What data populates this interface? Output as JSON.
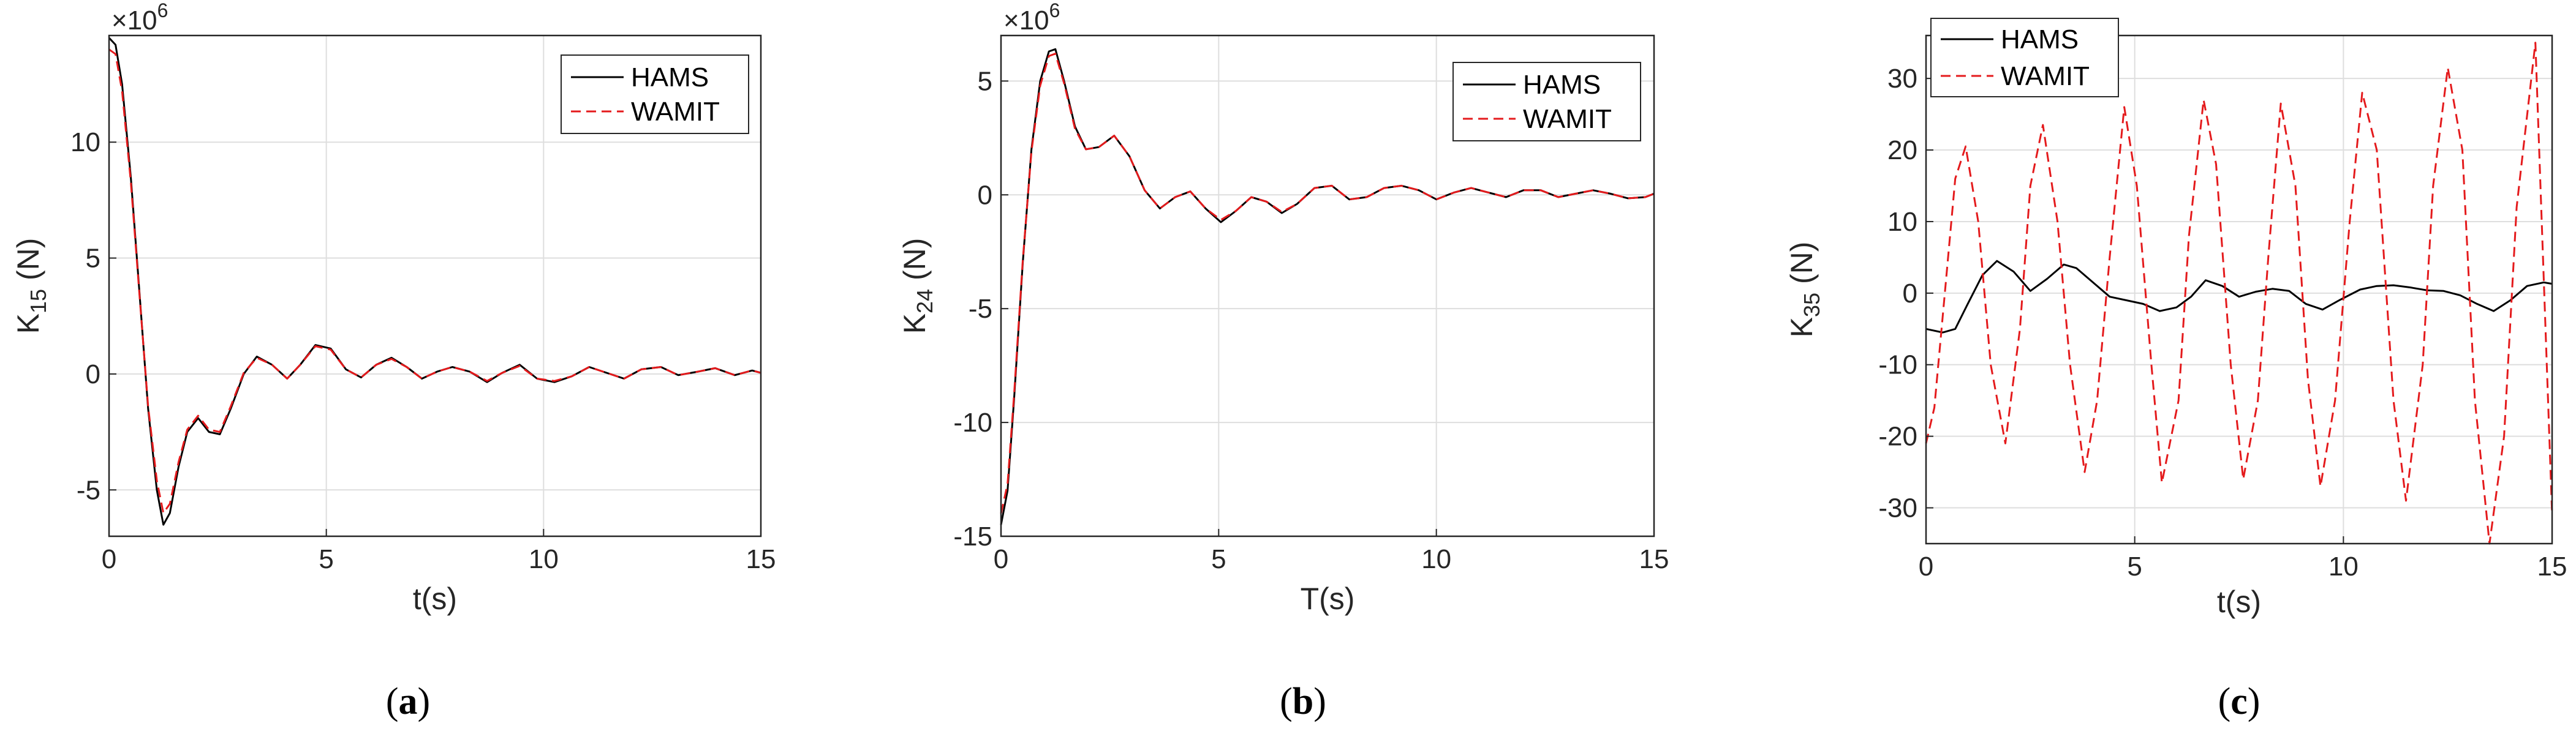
{
  "colors": {
    "hams": "#000000",
    "wamit": "#e41a1c",
    "grid": "#dedede",
    "axis": "#262626"
  },
  "chart_data": [
    {
      "type": "line",
      "caption_letter": "a",
      "xlabel": "t(s)",
      "ylabel_main": "K",
      "ylabel_sub": "15",
      "ylabel_unit": " (N)",
      "exponent_label": "×10",
      "exponent_power": "6",
      "xlim": [
        0,
        15
      ],
      "ylim": [
        -7,
        14.6
      ],
      "xticks": [
        0,
        5,
        10,
        15
      ],
      "yticks": [
        -5,
        0,
        5,
        10
      ],
      "grid": true,
      "legend_position": "top-right",
      "series": [
        {
          "name": "HAMS",
          "style": "solid",
          "x": [
            0,
            0.15,
            0.3,
            0.5,
            0.7,
            0.9,
            1.1,
            1.25,
            1.4,
            1.6,
            1.8,
            2.05,
            2.3,
            2.55,
            2.8,
            3.1,
            3.4,
            3.75,
            4.1,
            4.4,
            4.75,
            5.1,
            5.45,
            5.8,
            6.15,
            6.5,
            6.85,
            7.2,
            7.55,
            7.9,
            8.3,
            8.7,
            9.05,
            9.45,
            9.85,
            10.25,
            10.65,
            11.05,
            11.45,
            11.85,
            12.25,
            12.7,
            13.1,
            13.55,
            13.95,
            14.4,
            14.8,
            15
          ],
          "y": [
            14.5,
            14.2,
            12.5,
            8.5,
            3.5,
            -1.5,
            -5,
            -6.5,
            -6,
            -4,
            -2.5,
            -1.9,
            -2.5,
            -2.6,
            -1.5,
            0,
            0.75,
            0.4,
            -0.2,
            0.4,
            1.25,
            1.1,
            0.2,
            -0.15,
            0.4,
            0.7,
            0.3,
            -0.2,
            0.1,
            0.3,
            0.1,
            -0.35,
            0.05,
            0.4,
            -0.2,
            -0.35,
            -0.1,
            0.3,
            0.05,
            -0.2,
            0.2,
            0.3,
            -0.05,
            0.1,
            0.25,
            -0.05,
            0.15,
            0.05
          ]
        },
        {
          "name": "WAMIT",
          "style": "dashed",
          "x": [
            0,
            0.15,
            0.3,
            0.5,
            0.7,
            0.9,
            1.1,
            1.25,
            1.4,
            1.6,
            1.8,
            2.05,
            2.3,
            2.55,
            2.8,
            3.1,
            3.4,
            3.75,
            4.1,
            4.4,
            4.75,
            5.1,
            5.45,
            5.8,
            6.15,
            6.5,
            6.85,
            7.2,
            7.55,
            7.9,
            8.3,
            8.7,
            9.05,
            9.45,
            9.85,
            10.25,
            10.65,
            11.05,
            11.45,
            11.85,
            12.25,
            12.7,
            13.1,
            13.55,
            13.95,
            14.4,
            14.8,
            15
          ],
          "y": [
            14.0,
            13.8,
            12.2,
            8.3,
            3.4,
            -1.4,
            -4.6,
            -6.0,
            -5.6,
            -3.8,
            -2.4,
            -1.8,
            -2.4,
            -2.5,
            -1.4,
            0.05,
            0.7,
            0.4,
            -0.2,
            0.4,
            1.2,
            1.05,
            0.2,
            -0.15,
            0.4,
            0.65,
            0.3,
            -0.2,
            0.1,
            0.3,
            0.1,
            -0.3,
            0.05,
            0.35,
            -0.2,
            -0.3,
            -0.1,
            0.3,
            0.05,
            -0.2,
            0.2,
            0.3,
            -0.05,
            0.1,
            0.25,
            -0.05,
            0.15,
            0.05
          ]
        }
      ]
    },
    {
      "type": "line",
      "caption_letter": "b",
      "xlabel": "T(s)",
      "ylabel_main": "K",
      "ylabel_sub": "24",
      "ylabel_unit": " (N)",
      "exponent_label": "×10",
      "exponent_power": "6",
      "xlim": [
        0,
        15
      ],
      "ylim": [
        -15,
        7
      ],
      "xticks": [
        0,
        5,
        10,
        15
      ],
      "yticks": [
        -15,
        -10,
        -5,
        0,
        5
      ],
      "grid": true,
      "legend_position": "top-right",
      "series": [
        {
          "name": "HAMS",
          "style": "solid",
          "x": [
            0,
            0.15,
            0.3,
            0.5,
            0.7,
            0.9,
            1.1,
            1.25,
            1.45,
            1.7,
            1.95,
            2.25,
            2.6,
            2.95,
            3.3,
            3.65,
            4.0,
            4.35,
            4.7,
            5.05,
            5.4,
            5.75,
            6.1,
            6.45,
            6.8,
            7.2,
            7.6,
            8.0,
            8.4,
            8.8,
            9.2,
            9.6,
            10.0,
            10.4,
            10.8,
            11.2,
            11.6,
            12.0,
            12.4,
            12.8,
            13.2,
            13.6,
            14.0,
            14.4,
            14.8,
            15
          ],
          "y": [
            -14.5,
            -13,
            -9,
            -3,
            2,
            5,
            6.3,
            6.4,
            5,
            3,
            2,
            2.1,
            2.6,
            1.7,
            0.2,
            -0.6,
            -0.1,
            0.15,
            -0.6,
            -1.2,
            -0.7,
            -0.1,
            -0.3,
            -0.8,
            -0.4,
            0.3,
            0.4,
            -0.2,
            -0.1,
            0.3,
            0.4,
            0.2,
            -0.2,
            0.1,
            0.3,
            0.1,
            -0.1,
            0.2,
            0.2,
            -0.1,
            0.05,
            0.2,
            0.05,
            -0.15,
            -0.1,
            0.05
          ]
        },
        {
          "name": "WAMIT",
          "style": "dashed",
          "x": [
            0,
            0.15,
            0.3,
            0.5,
            0.7,
            0.9,
            1.1,
            1.25,
            1.45,
            1.7,
            1.95,
            2.25,
            2.6,
            2.95,
            3.3,
            3.65,
            4.0,
            4.35,
            4.7,
            5.05,
            5.4,
            5.75,
            6.1,
            6.45,
            6.8,
            7.2,
            7.6,
            8.0,
            8.4,
            8.8,
            9.2,
            9.6,
            10.0,
            10.4,
            10.8,
            11.2,
            11.6,
            12.0,
            12.4,
            12.8,
            13.2,
            13.6,
            14.0,
            14.4,
            14.8,
            15
          ],
          "y": [
            -14.0,
            -12.7,
            -8.8,
            -2.9,
            1.9,
            4.8,
            6.1,
            6.2,
            4.9,
            2.9,
            2.0,
            2.1,
            2.6,
            1.7,
            0.2,
            -0.6,
            -0.1,
            0.15,
            -0.6,
            -1.1,
            -0.7,
            -0.1,
            -0.3,
            -0.75,
            -0.4,
            0.3,
            0.4,
            -0.2,
            -0.1,
            0.3,
            0.4,
            0.2,
            -0.2,
            0.1,
            0.3,
            0.1,
            -0.1,
            0.2,
            0.2,
            -0.1,
            0.05,
            0.2,
            0.05,
            -0.15,
            -0.1,
            0.05
          ]
        }
      ]
    },
    {
      "type": "line",
      "caption_letter": "c",
      "xlabel": "t(s)",
      "ylabel_main": "K",
      "ylabel_sub": "35",
      "ylabel_unit": " (N)",
      "exponent_label": "",
      "exponent_power": "",
      "xlim": [
        0,
        15
      ],
      "ylim": [
        -35,
        36
      ],
      "xticks": [
        0,
        5,
        10,
        15
      ],
      "yticks": [
        -30,
        -20,
        -10,
        0,
        10,
        20,
        30
      ],
      "grid": true,
      "legend_position": "top-left",
      "series": [
        {
          "name": "HAMS",
          "style": "solid",
          "x": [
            0,
            0.4,
            0.7,
            1.0,
            1.35,
            1.7,
            2.1,
            2.5,
            2.9,
            3.3,
            3.6,
            4.0,
            4.4,
            4.8,
            5.2,
            5.6,
            6.0,
            6.35,
            6.7,
            7.1,
            7.5,
            7.9,
            8.3,
            8.7,
            9.1,
            9.5,
            9.9,
            10.4,
            10.8,
            11.2,
            11.6,
            12.0,
            12.4,
            12.8,
            13.2,
            13.6,
            14.0,
            14.4,
            14.8,
            15
          ],
          "y": [
            -5,
            -5.5,
            -5,
            -1.5,
            2.5,
            4.5,
            3,
            0.3,
            2,
            4,
            3.5,
            1.5,
            -0.5,
            -1,
            -1.5,
            -2.5,
            -2,
            -0.5,
            1.8,
            1,
            -0.5,
            0.2,
            0.6,
            0.3,
            -1.5,
            -2.3,
            -1,
            0.5,
            1,
            1.1,
            0.8,
            0.4,
            0.3,
            -0.3,
            -1.5,
            -2.5,
            -1,
            1,
            1.5,
            1.3
          ]
        },
        {
          "name": "WAMIT",
          "style": "dashed",
          "x": [
            0,
            0.2,
            0.45,
            0.7,
            0.95,
            1.25,
            1.55,
            1.9,
            2.25,
            2.5,
            2.8,
            3.15,
            3.45,
            3.8,
            4.1,
            4.4,
            4.75,
            5.05,
            5.4,
            5.65,
            6.05,
            6.3,
            6.65,
            6.95,
            7.3,
            7.6,
            7.95,
            8.2,
            8.5,
            8.85,
            9.15,
            9.45,
            9.8,
            10.15,
            10.45,
            10.8,
            11.2,
            11.5,
            11.9,
            12.15,
            12.5,
            12.85,
            13.15,
            13.5,
            13.85,
            14.15,
            14.6,
            15
          ],
          "y": [
            -21,
            -16,
            0,
            16,
            20.5,
            10,
            -10,
            -21,
            -5,
            15,
            23.5,
            10,
            -10,
            -25,
            -15,
            5,
            26,
            15,
            -10,
            -26.5,
            -15,
            8,
            27,
            18,
            -10,
            -26,
            -15,
            5,
            26.5,
            15,
            -12,
            -27,
            -15,
            10,
            28,
            20,
            -15,
            -29,
            -10,
            15,
            31.5,
            20,
            -15,
            -35,
            -20,
            12,
            35,
            -31
          ]
        }
      ]
    }
  ]
}
